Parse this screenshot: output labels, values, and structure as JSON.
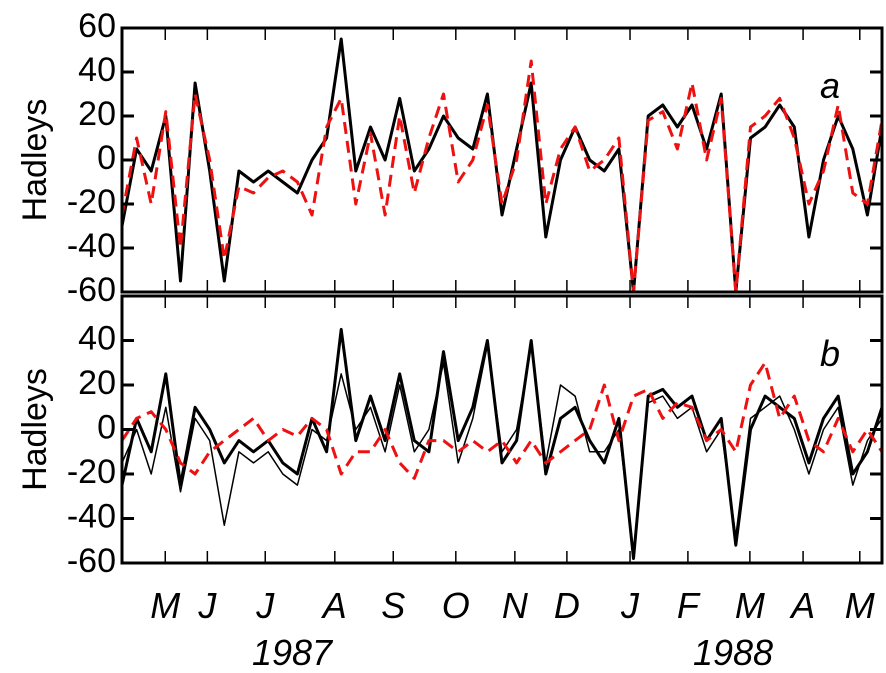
{
  "chart_data": [
    {
      "type": "line",
      "y_label": "Hadleys",
      "panel_label": "a",
      "x": [
        0,
        0.25,
        0.5,
        0.75,
        1,
        1.25,
        1.5,
        1.75,
        2,
        2.25,
        2.5,
        2.75,
        3,
        3.25,
        3.5,
        3.75,
        4,
        4.25,
        4.5,
        4.75,
        5,
        5.25,
        5.5,
        5.75,
        6,
        6.25,
        6.5,
        6.75,
        7,
        7.25,
        7.5,
        7.75,
        8,
        8.25,
        8.5,
        8.75,
        9,
        9.25,
        9.5,
        9.75,
        10,
        10.25,
        10.5,
        10.75,
        11,
        11.25,
        11.5,
        11.75,
        12,
        12.25,
        12.5,
        12.75,
        13
      ],
      "xlim": [
        0,
        13
      ],
      "ylim": [
        -60,
        60
      ],
      "yticks": [
        -60,
        -40,
        -20,
        0,
        20,
        40,
        60
      ],
      "series": [
        {
          "color": "#000000",
          "dash": "solid",
          "width": 3,
          "values": [
            -30,
            5,
            -5,
            20,
            -55,
            35,
            -5,
            -55,
            -5,
            -10,
            -5,
            -10,
            -15,
            0,
            10,
            55,
            -5,
            15,
            0,
            28,
            -5,
            5,
            20,
            10,
            5,
            30,
            -25,
            5,
            35,
            -35,
            0,
            15,
            0,
            -5,
            5,
            -60,
            20,
            25,
            15,
            25,
            5,
            30,
            -60,
            10,
            15,
            25,
            15,
            -35,
            0,
            20,
            5,
            -25,
            15
          ]
        },
        {
          "color": "#ee1111",
          "dash": "dashed",
          "width": 3,
          "values": [
            -25,
            10,
            -20,
            22,
            -40,
            30,
            0,
            -45,
            -12,
            -15,
            -8,
            -5,
            -10,
            -25,
            15,
            28,
            -20,
            12,
            -25,
            20,
            -15,
            10,
            30,
            -10,
            0,
            25,
            -20,
            0,
            45,
            -20,
            5,
            15,
            -5,
            0,
            10,
            -60,
            18,
            22,
            5,
            35,
            0,
            28,
            -60,
            15,
            20,
            28,
            10,
            -20,
            -5,
            25,
            -15,
            -20,
            18
          ]
        }
      ]
    },
    {
      "type": "line",
      "y_label": "Hadleys",
      "panel_label": "b",
      "x": [
        0,
        0.25,
        0.5,
        0.75,
        1,
        1.25,
        1.5,
        1.75,
        2,
        2.25,
        2.5,
        2.75,
        3,
        3.25,
        3.5,
        3.75,
        4,
        4.25,
        4.5,
        4.75,
        5,
        5.25,
        5.5,
        5.75,
        6,
        6.25,
        6.5,
        6.75,
        7,
        7.25,
        7.5,
        7.75,
        8,
        8.25,
        8.5,
        8.75,
        9,
        9.25,
        9.5,
        9.75,
        10,
        10.25,
        10.5,
        10.75,
        11,
        11.25,
        11.5,
        11.75,
        12,
        12.25,
        12.5,
        12.75,
        13
      ],
      "xlim": [
        0,
        13
      ],
      "ylim": [
        -60,
        60
      ],
      "yticks": [
        -60,
        -40,
        -20,
        0,
        20,
        40
      ],
      "xticks": [
        {
          "value": 0.74,
          "label": "M"
        },
        {
          "value": 1.46,
          "label": "J"
        },
        {
          "value": 2.45,
          "label": "J"
        },
        {
          "value": 3.64,
          "label": "A"
        },
        {
          "value": 4.64,
          "label": "S"
        },
        {
          "value": 5.71,
          "label": "O"
        },
        {
          "value": 6.72,
          "label": "N"
        },
        {
          "value": 7.61,
          "label": "D"
        },
        {
          "value": 8.69,
          "label": "J"
        },
        {
          "value": 9.68,
          "label": "F"
        },
        {
          "value": 10.74,
          "label": "M"
        },
        {
          "value": 11.65,
          "label": "A"
        },
        {
          "value": 12.62,
          "label": "M"
        }
      ],
      "year_labels": [
        "1987",
        "1988"
      ],
      "series": [
        {
          "color": "#000000",
          "dash": "solid",
          "width": 3,
          "values": [
            -25,
            5,
            -10,
            25,
            -25,
            10,
            0,
            -15,
            -5,
            -10,
            -5,
            -15,
            -20,
            5,
            -10,
            45,
            -5,
            15,
            -5,
            25,
            -5,
            -10,
            35,
            -5,
            10,
            40,
            -15,
            -5,
            40,
            -20,
            5,
            10,
            -5,
            -15,
            5,
            -58,
            15,
            18,
            10,
            15,
            -5,
            5,
            -52,
            0,
            15,
            10,
            5,
            -15,
            5,
            15,
            -20,
            -10,
            10
          ]
        },
        {
          "color": "#000000",
          "dash": "solid",
          "width": 1.5,
          "values": [
            -15,
            0,
            -20,
            10,
            -28,
            5,
            -5,
            -43,
            -10,
            -15,
            -10,
            -20,
            -25,
            0,
            -5,
            25,
            0,
            10,
            -10,
            20,
            -10,
            0,
            30,
            -15,
            5,
            38,
            -10,
            0,
            38,
            -15,
            20,
            15,
            -10,
            -10,
            0,
            -55,
            12,
            15,
            5,
            10,
            -10,
            0,
            -48,
            5,
            10,
            15,
            0,
            -20,
            0,
            10,
            -25,
            -5,
            5
          ]
        },
        {
          "color": "#ee1111",
          "dash": "dashed",
          "width": 3,
          "values": [
            -5,
            5,
            8,
            0,
            -15,
            -20,
            -10,
            -5,
            0,
            5,
            -5,
            0,
            -3,
            5,
            0,
            -20,
            -10,
            -10,
            0,
            -15,
            -22,
            -5,
            -5,
            -10,
            -5,
            -10,
            -5,
            -15,
            -5,
            -15,
            -10,
            -5,
            0,
            20,
            -5,
            15,
            18,
            5,
            12,
            10,
            -5,
            0,
            -10,
            20,
            30,
            5,
            15,
            -5,
            -10,
            5,
            -10,
            0,
            -10
          ]
        }
      ]
    }
  ]
}
